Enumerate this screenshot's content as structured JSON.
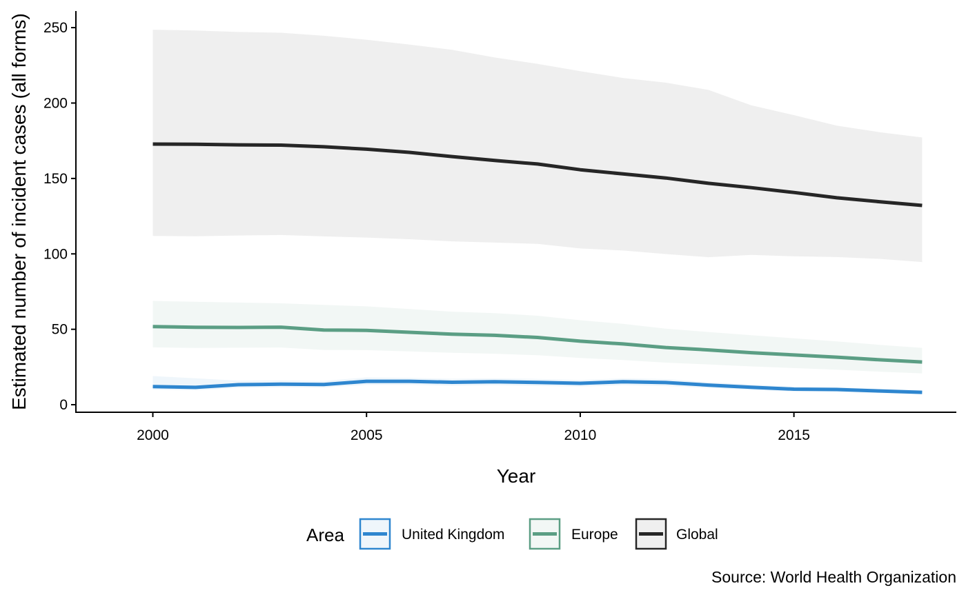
{
  "chart_data": {
    "type": "line",
    "xlabel": "Year",
    "ylabel": "Estimated number of incident cases (all forms)",
    "caption": "Source: World Health Organization",
    "xlim": [
      1998.2,
      2018.8
    ],
    "ylim": [
      -5,
      261
    ],
    "xticks": [
      2000,
      2005,
      2010,
      2015
    ],
    "yticks": [
      0,
      50,
      100,
      150,
      200,
      250
    ],
    "grid": false,
    "legend": {
      "title": "Area",
      "position": "bottom"
    },
    "x": [
      2000,
      2001,
      2002,
      2003,
      2004,
      2005,
      2006,
      2007,
      2008,
      2009,
      2010,
      2011,
      2012,
      2013,
      2014,
      2015,
      2016,
      2017,
      2018
    ],
    "series": [
      {
        "name": "United Kingdom",
        "color": "#2E86CF",
        "band_color": "#2E86CF",
        "values": [
          12,
          11.5,
          13.3,
          13.6,
          13.4,
          15.5,
          15.5,
          14.9,
          15.2,
          14.8,
          14.2,
          15.2,
          14.7,
          13,
          11.6,
          10.3,
          10.1,
          9.1,
          8.2
        ],
        "lower": [
          10,
          9.6,
          11.2,
          11.5,
          11.3,
          13.2,
          13.2,
          12.6,
          12.9,
          12.5,
          12,
          12.9,
          12.4,
          11,
          9.8,
          8.7,
          8.5,
          7.7,
          6.9
        ],
        "upper": [
          19,
          17.5,
          16,
          16.1,
          15.8,
          18.1,
          17.8,
          17.2,
          17.5,
          17.1,
          16.4,
          17.5,
          17.0,
          15.0,
          13.4,
          11.9,
          11.7,
          10.5,
          9.5
        ]
      },
      {
        "name": "Europe",
        "color": "#5B9E84",
        "band_color": "#5B9E84",
        "values": [
          51.8,
          51.3,
          51.2,
          51.4,
          49.5,
          49.3,
          48,
          46.8,
          46,
          44.6,
          42.1,
          40.3,
          37.9,
          36.3,
          34.5,
          33,
          31.5,
          29.8,
          28.3
        ],
        "lower": [
          38,
          37.6,
          37.8,
          37.9,
          36.3,
          36.2,
          35.3,
          34.4,
          33.8,
          32.8,
          31,
          29.6,
          27.9,
          26.7,
          25.4,
          24.3,
          23.2,
          21.9,
          20.8
        ],
        "upper": [
          68.8,
          68.2,
          67.7,
          67.2,
          66.2,
          65.2,
          63.4,
          61.7,
          60.7,
          59,
          56,
          53.6,
          50.4,
          48.2,
          46.1,
          44,
          42,
          39.7,
          37.7
        ]
      },
      {
        "name": "Global",
        "color": "#262626",
        "band_color": "#BEBEBE",
        "values": [
          172.8,
          172.7,
          172.3,
          172.1,
          171,
          169.4,
          167.3,
          164.5,
          161.9,
          159.6,
          155.8,
          153,
          150.3,
          146.8,
          143.9,
          140.7,
          137.2,
          134.6,
          132.1
        ],
        "lower": [
          111.9,
          111.7,
          112.2,
          112.5,
          111.6,
          110.8,
          109.7,
          108.3,
          107.5,
          106.6,
          103.6,
          102.2,
          99.9,
          97.8,
          99.3,
          98.4,
          97.9,
          96.7,
          94.6
        ],
        "upper": [
          248.6,
          248.1,
          247.1,
          246.6,
          244.6,
          242,
          238.8,
          235.3,
          230.2,
          226,
          221.1,
          216.6,
          213.5,
          208.7,
          198.5,
          192,
          185,
          180.7,
          177.2
        ]
      }
    ]
  }
}
